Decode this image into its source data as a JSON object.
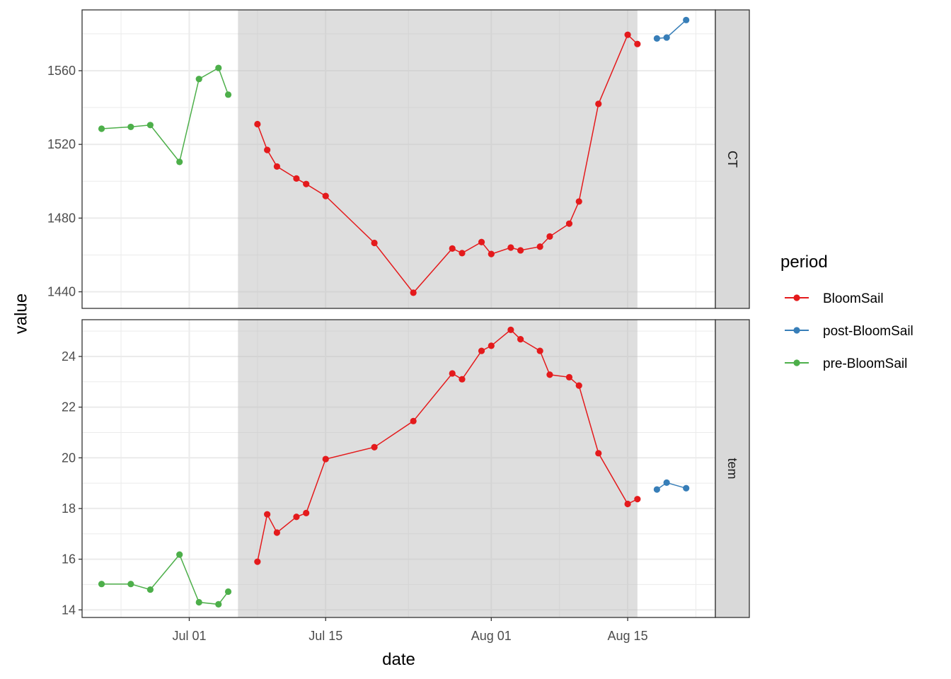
{
  "chart_data": {
    "type": "line",
    "xlabel": "date",
    "ylabel": "value",
    "x_ticks": [
      "Jul 01",
      "Jul 15",
      "Aug 01",
      "Aug 15"
    ],
    "x_tick_dates": [
      "2021-07-01",
      "2021-07-15",
      "2021-08-01",
      "2021-08-15"
    ],
    "xlim": [
      "2021-06-20",
      "2021-08-24"
    ],
    "shaded_period": [
      "2021-07-06",
      "2021-08-16"
    ],
    "grid": true,
    "legend": {
      "title": "period",
      "position": "right",
      "entries": [
        {
          "name": "BloomSail",
          "color": "#E41A1C"
        },
        {
          "name": "post-BloomSail",
          "color": "#377EB8"
        },
        {
          "name": "pre-BloomSail",
          "color": "#4DAF4A"
        }
      ]
    },
    "facets": [
      {
        "strip": "CT",
        "ylim": [
          1431,
          1593
        ],
        "y_ticks": [
          1440,
          1480,
          1520,
          1560
        ],
        "series": [
          {
            "name": "pre-BloomSail",
            "color": "#4DAF4A",
            "x": [
              "2021-06-22",
              "2021-06-25",
              "2021-06-27",
              "2021-06-30",
              "2021-07-02",
              "2021-07-04",
              "2021-07-05"
            ],
            "y": [
              1528.5,
              1529.5,
              1530.5,
              1510.5,
              1555.5,
              1561.5,
              1547
            ]
          },
          {
            "name": "BloomSail",
            "color": "#E41A1C",
            "x": [
              "2021-07-08",
              "2021-07-09",
              "2021-07-10",
              "2021-07-12",
              "2021-07-13",
              "2021-07-15",
              "2021-07-20",
              "2021-07-24",
              "2021-07-28",
              "2021-07-29",
              "2021-07-31",
              "2021-08-01",
              "2021-08-03",
              "2021-08-04",
              "2021-08-06",
              "2021-08-07",
              "2021-08-09",
              "2021-08-10",
              "2021-08-12",
              "2021-08-15",
              "2021-08-16"
            ],
            "y": [
              1531,
              1517,
              1508,
              1501.5,
              1498.5,
              1492,
              1466.5,
              1439.5,
              1463.5,
              1461,
              1467,
              1460.5,
              1464,
              1462.5,
              1464.5,
              1470,
              1477,
              1489,
              1542,
              1579.5,
              1574.5
            ]
          },
          {
            "name": "post-BloomSail",
            "color": "#377EB8",
            "x": [
              "2021-08-18",
              "2021-08-19",
              "2021-08-21"
            ],
            "y": [
              1577.5,
              1578,
              1587.5
            ]
          }
        ]
      },
      {
        "strip": "tem",
        "ylim": [
          13.7,
          25.45
        ],
        "y_ticks": [
          14,
          16,
          18,
          20,
          22,
          24
        ],
        "series": [
          {
            "name": "pre-BloomSail",
            "color": "#4DAF4A",
            "x": [
              "2021-06-22",
              "2021-06-25",
              "2021-06-27",
              "2021-06-30",
              "2021-07-02",
              "2021-07-04",
              "2021-07-05"
            ],
            "y": [
              15.02,
              15.02,
              14.8,
              16.18,
              14.3,
              14.22,
              14.72
            ]
          },
          {
            "name": "BloomSail",
            "color": "#E41A1C",
            "x": [
              "2021-07-08",
              "2021-07-09",
              "2021-07-10",
              "2021-07-12",
              "2021-07-13",
              "2021-07-15",
              "2021-07-20",
              "2021-07-24",
              "2021-07-28",
              "2021-07-29",
              "2021-07-31",
              "2021-08-01",
              "2021-08-03",
              "2021-08-04",
              "2021-08-06",
              "2021-08-07",
              "2021-08-09",
              "2021-08-10",
              "2021-08-12",
              "2021-08-15",
              "2021-08-16"
            ],
            "y": [
              15.9,
              17.77,
              17.05,
              17.67,
              17.82,
              19.95,
              20.42,
              21.45,
              23.33,
              23.1,
              24.22,
              24.42,
              25.05,
              24.68,
              24.22,
              23.28,
              23.18,
              22.85,
              20.18,
              18.18,
              18.37
            ]
          },
          {
            "name": "post-BloomSail",
            "color": "#377EB8",
            "x": [
              "2021-08-18",
              "2021-08-19",
              "2021-08-21"
            ],
            "y": [
              18.75,
              19.02,
              18.8
            ]
          }
        ]
      }
    ]
  }
}
